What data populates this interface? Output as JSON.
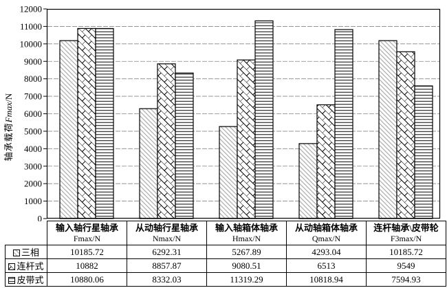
{
  "chart_data": {
    "type": "bar",
    "title": "",
    "ylabel": {
      "cn": "轴承载荷",
      "var": "Fmax",
      "unit": "/N"
    },
    "ylim": [
      0,
      12000
    ],
    "ytick_step": 1000,
    "grid": true,
    "legend_position": "table-rows-left",
    "categories": [
      {
        "name": "输入轴行星轴承",
        "symbol": "Fmax/N"
      },
      {
        "name": "从动轴行星轴承",
        "symbol": "Nmax/N"
      },
      {
        "name": "输入轴箱体轴承",
        "symbol": "Hmax/N"
      },
      {
        "name": "从动轴箱体轴承",
        "symbol": "Qmax/N"
      },
      {
        "name": "连杆轴承\\皮带轮",
        "symbol": "F3max/N"
      }
    ],
    "series": [
      {
        "name": "三相",
        "pattern": "light-diagonal-hatch",
        "values": [
          10185.72,
          6292.31,
          5267.89,
          4293.04,
          10185.72
        ]
      },
      {
        "name": "连杆式",
        "pattern": "diagonal-brick",
        "values": [
          10882,
          8857.87,
          9080.51,
          6513,
          9549
        ]
      },
      {
        "name": "皮带式",
        "pattern": "horizontal-lines",
        "values": [
          10880.06,
          8332.03,
          11319.29,
          10818.94,
          7594.93
        ]
      }
    ]
  },
  "colors": {
    "ink": "#000000",
    "grid_line": "#858585",
    "hatch_light": "#9a9a9a",
    "background": "#ffffff"
  }
}
